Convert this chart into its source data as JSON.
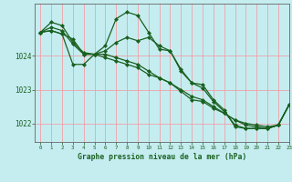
{
  "background_color": "#c5edf0",
  "grid_color": "#f0a0a8",
  "line_color": "#1a6020",
  "xlabel": "Graphe pression niveau de la mer (hPa)",
  "xlim": [
    -0.5,
    23
  ],
  "ylim": [
    1021.45,
    1025.55
  ],
  "yticks": [
    1022,
    1023,
    1024
  ],
  "xticks": [
    0,
    1,
    2,
    3,
    4,
    5,
    6,
    7,
    8,
    9,
    10,
    11,
    12,
    13,
    14,
    15,
    16,
    17,
    18,
    19,
    20,
    21,
    22,
    23
  ],
  "series": [
    {
      "x": [
        0,
        1,
        2,
        3,
        4,
        5,
        6,
        7,
        8,
        9,
        10,
        11,
        12,
        13,
        14,
        15,
        16,
        17,
        18,
        19,
        20,
        21,
        22,
        23
      ],
      "y": [
        1024.7,
        1025.0,
        1024.9,
        1024.4,
        1024.1,
        1024.05,
        1024.3,
        1025.1,
        1025.3,
        1025.2,
        1024.7,
        1024.2,
        1024.15,
        1023.6,
        1023.2,
        1023.15,
        1022.7,
        1022.4,
        1021.9,
        1021.85,
        1021.85,
        1021.85,
        1021.95,
        1022.55
      ]
    },
    {
      "x": [
        0,
        1,
        2,
        3,
        4,
        5,
        6,
        7,
        8,
        9,
        10,
        11,
        12,
        13,
        14,
        15,
        16,
        17,
        18,
        19,
        20,
        21,
        22,
        23
      ],
      "y": [
        1024.7,
        1024.85,
        1024.75,
        1024.35,
        1024.05,
        1024.05,
        1024.15,
        1024.4,
        1024.55,
        1024.45,
        1024.55,
        1024.3,
        1024.15,
        1023.55,
        1023.2,
        1023.05,
        1022.65,
        1022.35,
        1021.95,
        1021.85,
        1021.85,
        1021.85,
        1021.95,
        1022.55
      ]
    },
    {
      "x": [
        0,
        1,
        2,
        3,
        4,
        5,
        6,
        7,
        8,
        9,
        10,
        11,
        12,
        13,
        14,
        15,
        16,
        17,
        18,
        19,
        20,
        21,
        22,
        23
      ],
      "y": [
        1024.7,
        1024.75,
        1024.65,
        1024.5,
        1024.05,
        1024.05,
        1023.95,
        1023.85,
        1023.75,
        1023.65,
        1023.45,
        1023.35,
        1023.2,
        1023.0,
        1022.8,
        1022.7,
        1022.5,
        1022.3,
        1022.1,
        1022.0,
        1021.95,
        1021.9,
        1021.95,
        1022.55
      ]
    },
    {
      "x": [
        0,
        1,
        2,
        3,
        4,
        5,
        6,
        7,
        8,
        9,
        10,
        11,
        12,
        13,
        14,
        15,
        16,
        17,
        18,
        19,
        20,
        21,
        22,
        23
      ],
      "y": [
        1024.7,
        1024.75,
        1024.65,
        1023.75,
        1023.75,
        1024.05,
        1024.05,
        1023.95,
        1023.85,
        1023.75,
        1023.55,
        1023.35,
        1023.2,
        1022.95,
        1022.7,
        1022.65,
        1022.45,
        1022.3,
        1022.1,
        1021.95,
        1021.9,
        1021.85,
        1021.95,
        1022.55
      ]
    }
  ]
}
